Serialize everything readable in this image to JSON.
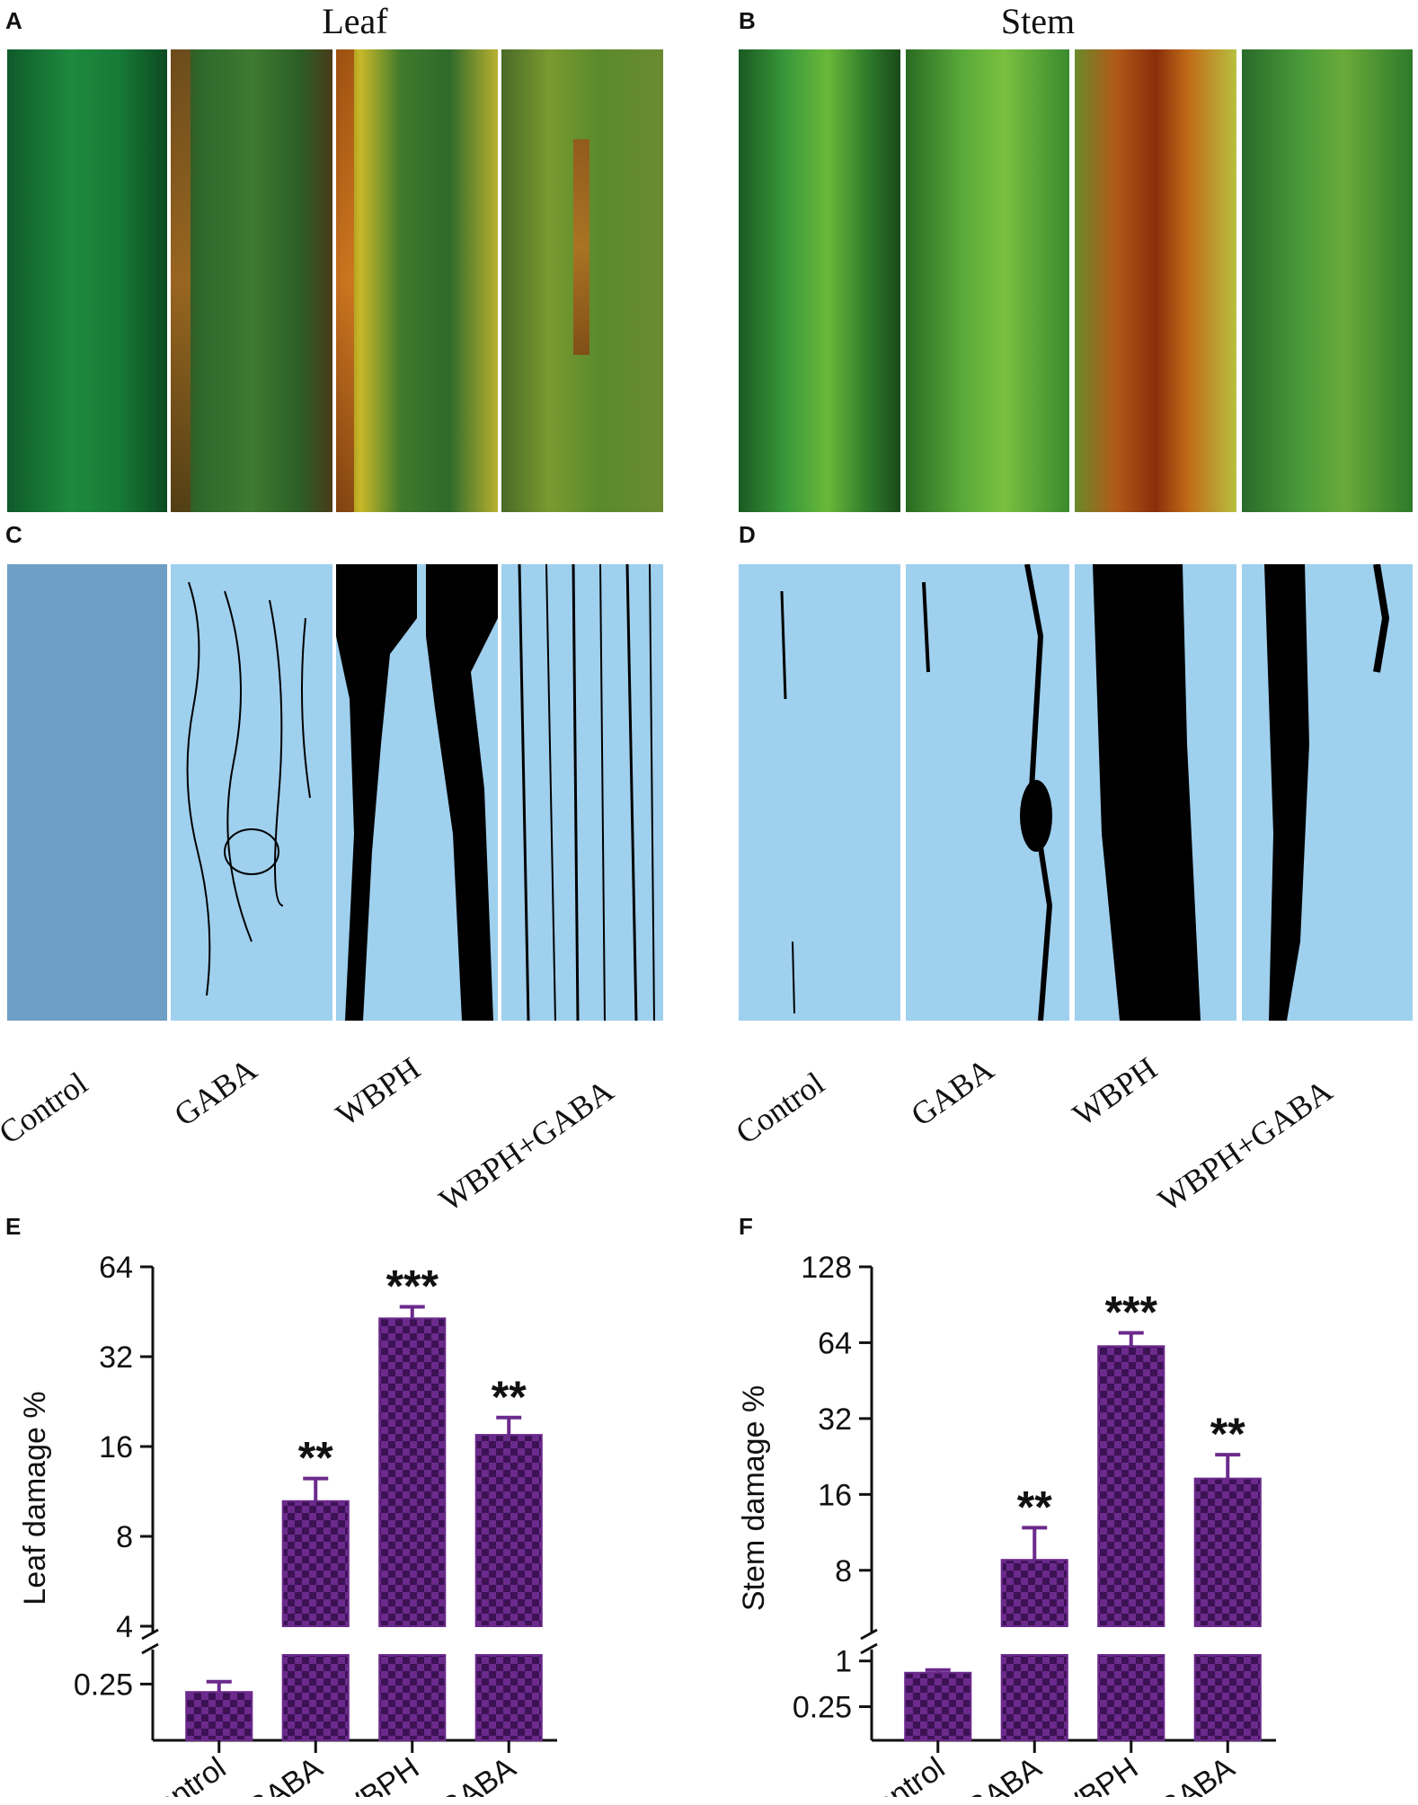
{
  "panels": {
    "A": "A",
    "B": "B",
    "C": "C",
    "D": "D",
    "E": "E",
    "F": "F"
  },
  "titles": {
    "leaf": "Leaf",
    "stem": "Stem"
  },
  "treatments": [
    "Control",
    "GABA",
    "WBPH",
    "WBPH+GABA"
  ],
  "colors": {
    "bar_fill": "#6b2a8c",
    "bar_check": "#3d1255",
    "mask_bg": "#9fd0ee",
    "mask_control_leaf": "#6f9fc4",
    "damage": "#000000"
  },
  "chart_data": [
    {
      "type": "bar",
      "panel": "E",
      "categories": [
        "Control",
        "GABA",
        "WBPH",
        "WBPH+GABA"
      ],
      "values": [
        0.22,
        10.5,
        43,
        17.5
      ],
      "errors": [
        0.04,
        2.0,
        4.0,
        2.5
      ],
      "significance": [
        "",
        "**",
        "***",
        "**"
      ],
      "ylabel": "Leaf damage %",
      "yscale": "log2",
      "broken_axis": true,
      "lower_ticks": [
        0.25
      ],
      "upper_ticks": [
        4,
        8,
        16,
        32,
        64
      ],
      "lower_range": [
        0.12,
        0.4
      ],
      "upper_range": [
        4,
        64
      ]
    },
    {
      "type": "bar",
      "panel": "F",
      "categories": [
        "Control",
        "GABA",
        "WBPH",
        "WBPH+GABA"
      ],
      "values": [
        0.7,
        8.8,
        62,
        18.5
      ],
      "errors": [
        0.06,
        3.0,
        8.0,
        4.5
      ],
      "significance": [
        "",
        "**",
        "***",
        "**"
      ],
      "ylabel": "Stem damage %",
      "yscale": "log2",
      "broken_axis": true,
      "lower_ticks": [
        0.25,
        1
      ],
      "upper_ticks": [
        8,
        16,
        32,
        64,
        128
      ],
      "lower_range": [
        0.125,
        1.2
      ],
      "upper_range": [
        4.8,
        128
      ]
    }
  ]
}
